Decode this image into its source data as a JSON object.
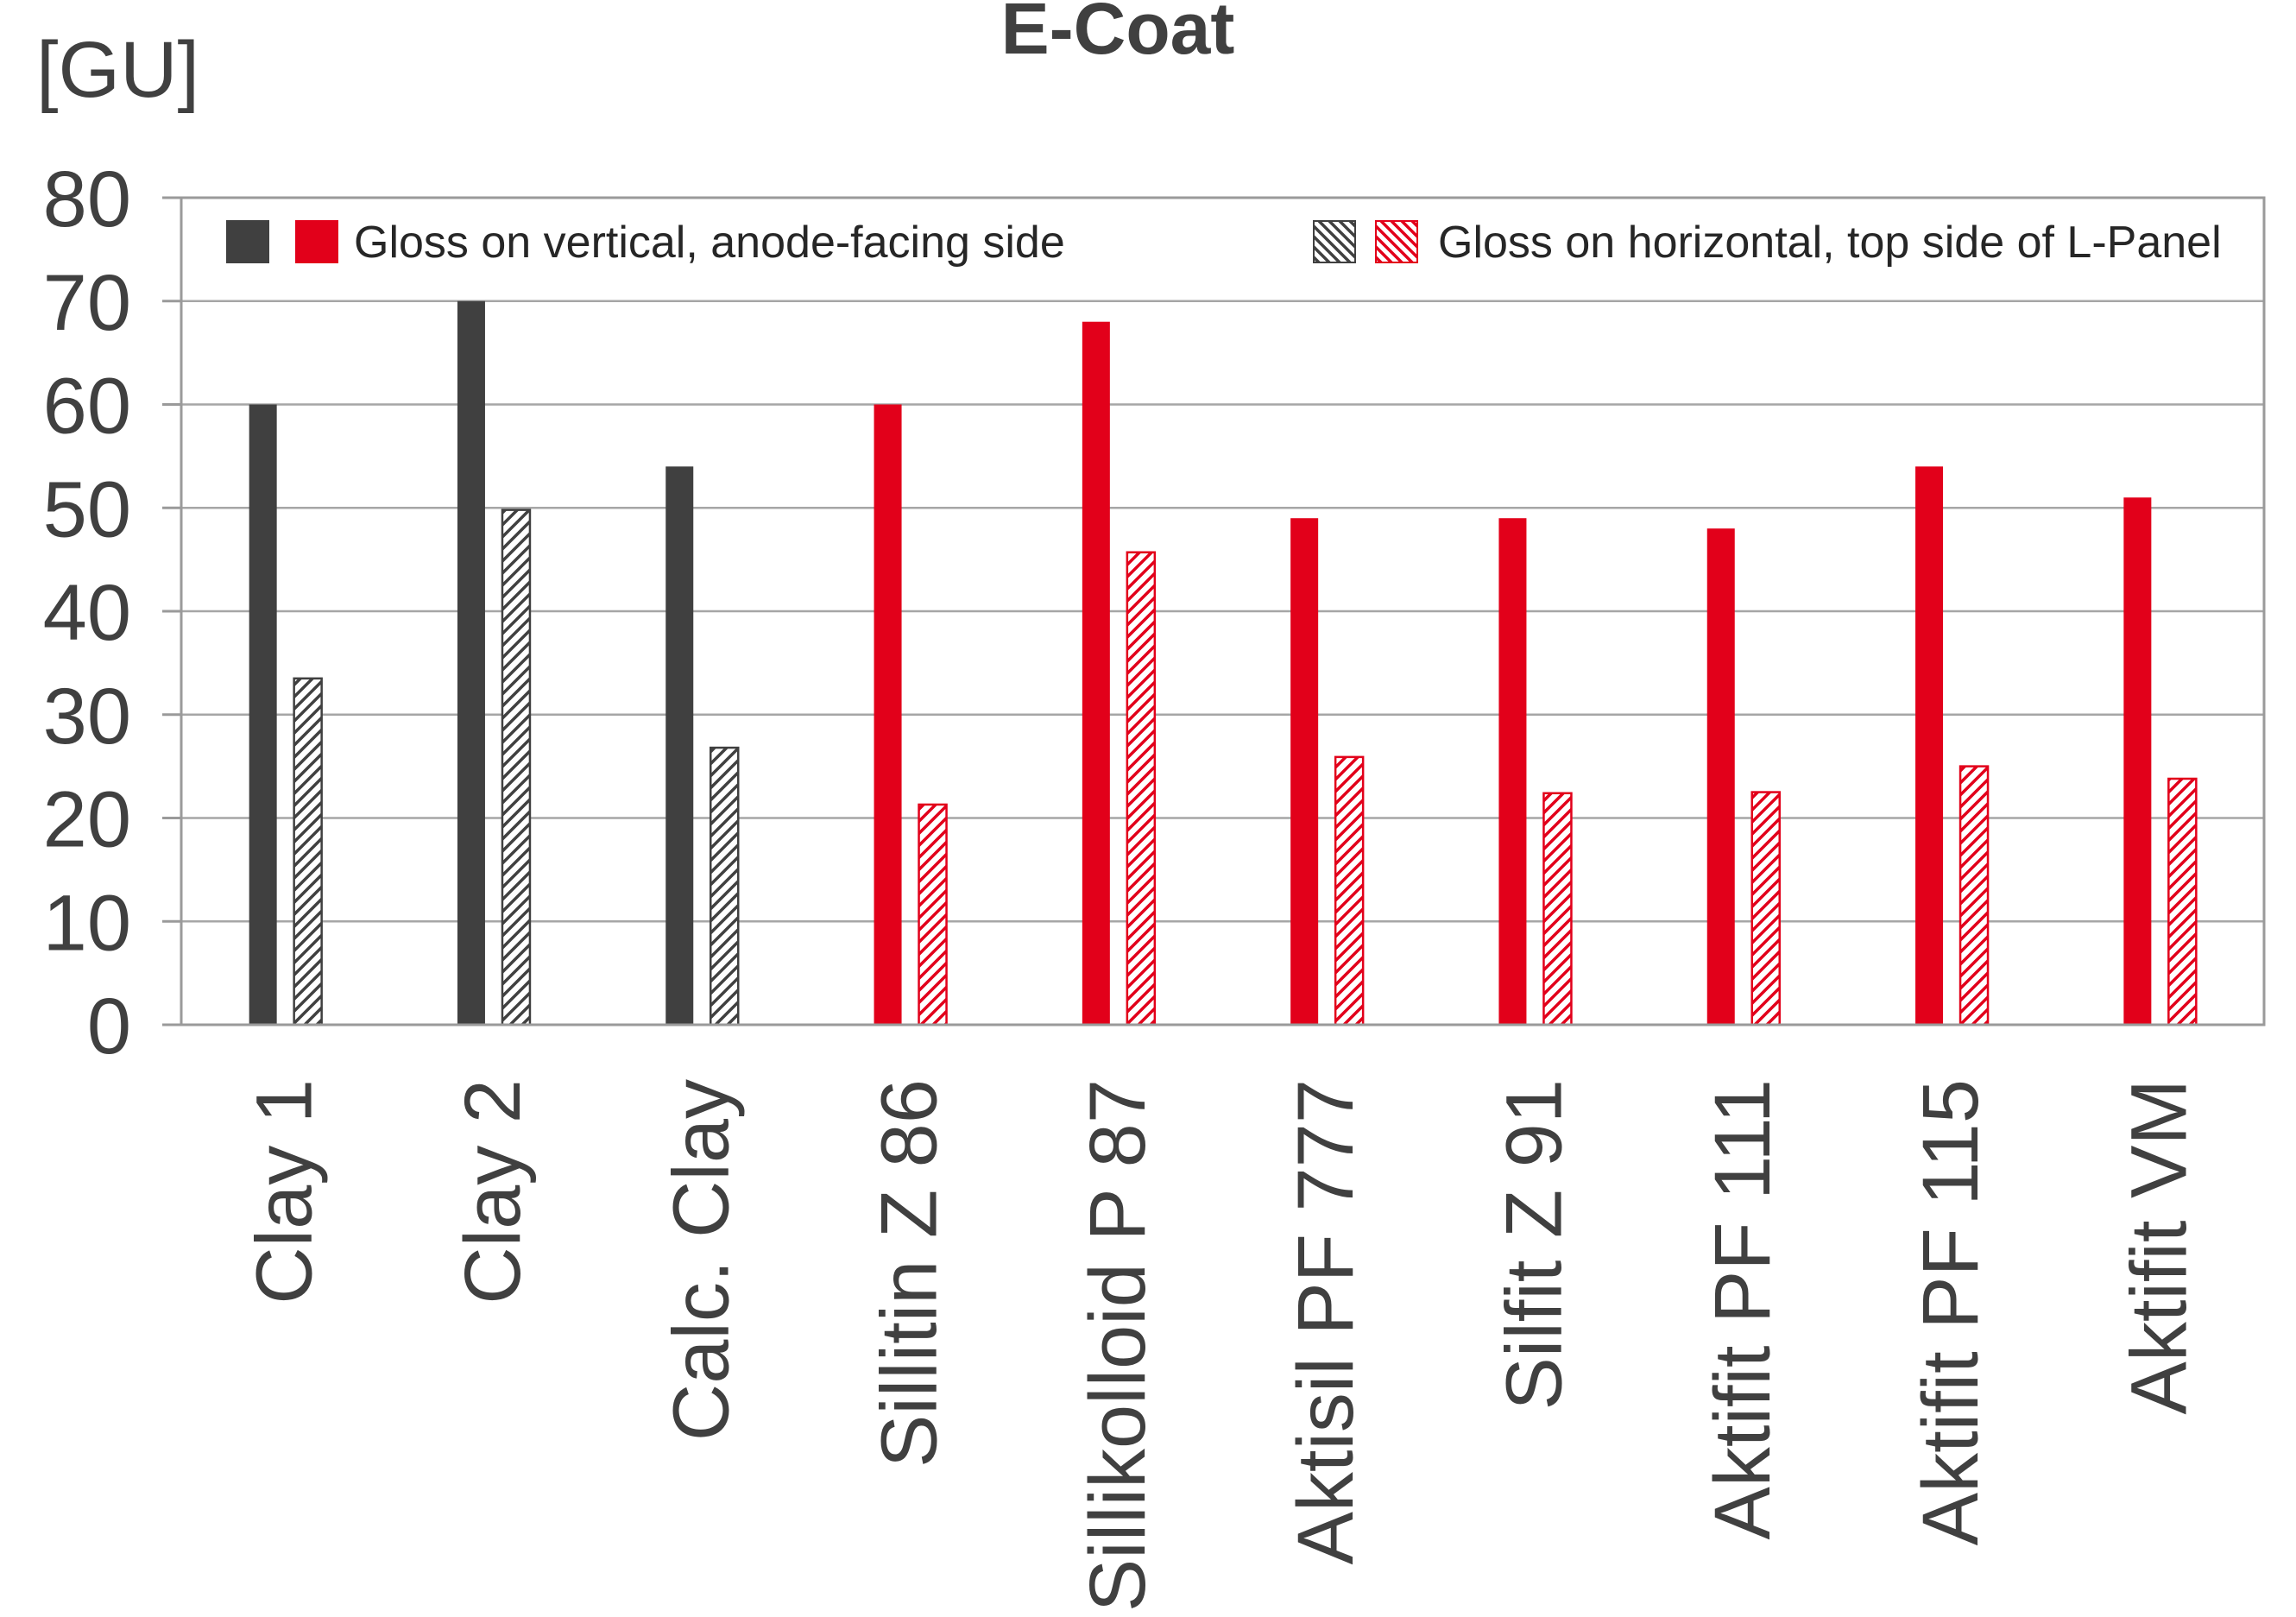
{
  "chart_data": {
    "type": "bar",
    "title": "E-Coat",
    "ylabel": "[GU]",
    "xlabel": "",
    "ylim": [
      0,
      80
    ],
    "yticks": [
      0,
      10,
      20,
      30,
      40,
      50,
      60,
      70,
      80
    ],
    "grid": true,
    "legend_position": "top",
    "categories": [
      "Clay 1",
      "Clay 2",
      "Calc. Clay",
      "Sillitin Z 86",
      "Sillikolloid P 87",
      "Aktisil PF 777",
      "Silfit Z 91",
      "Aktifit PF 111",
      "Aktifit PF 115",
      "Aktifit VM"
    ],
    "category_colors": [
      "#404040",
      "#404040",
      "#404040",
      "#e2001a",
      "#e2001a",
      "#e2001a",
      "#e2001a",
      "#e2001a",
      "#e2001a",
      "#e2001a"
    ],
    "series": [
      {
        "name": "Gloss on vertical, anode-facing side",
        "pattern": "solid",
        "values": [
          60,
          70,
          54,
          60,
          68,
          49,
          49,
          48,
          54,
          51
        ]
      },
      {
        "name": "Gloss on horizontal, top side of L-Panel",
        "pattern": "hatched",
        "values": [
          33.5,
          49.8,
          26.8,
          21.3,
          45.7,
          25.9,
          22.4,
          22.5,
          25,
          23.8
        ]
      }
    ]
  }
}
